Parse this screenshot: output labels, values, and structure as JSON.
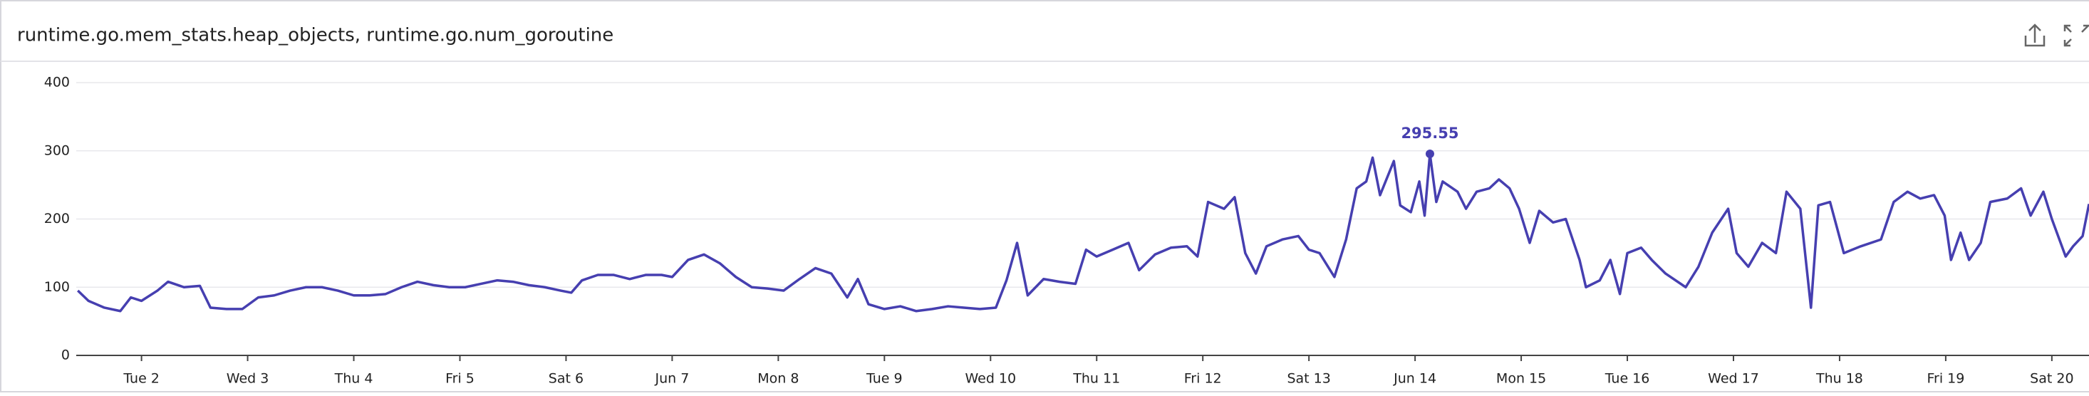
{
  "chart_data": {
    "type": "line",
    "title": "runtime.go.mem_stats.heap_objects, runtime.go.num_goroutine",
    "xlim": [
      1.385,
      20.35
    ],
    "xticks": [
      {
        "value": 2,
        "label": "Tue 2"
      },
      {
        "value": 3,
        "label": "Wed 3"
      },
      {
        "value": 4,
        "label": "Thu 4"
      },
      {
        "value": 5,
        "label": "Fri 5"
      },
      {
        "value": 6,
        "label": "Sat 6"
      },
      {
        "value": 7,
        "label": "Jun 7"
      },
      {
        "value": 8,
        "label": "Mon 8"
      },
      {
        "value": 9,
        "label": "Tue 9"
      },
      {
        "value": 10,
        "label": "Wed 10"
      },
      {
        "value": 11,
        "label": "Thu 11"
      },
      {
        "value": 12,
        "label": "Fri 12"
      },
      {
        "value": 13,
        "label": "Sat 13"
      },
      {
        "value": 14,
        "label": "Jun 14"
      },
      {
        "value": 15,
        "label": "Mon 15"
      },
      {
        "value": 16,
        "label": "Tue 16"
      },
      {
        "value": 17,
        "label": "Wed 17"
      },
      {
        "value": 18,
        "label": "Thu 18"
      },
      {
        "value": 19,
        "label": "Fri 19"
      },
      {
        "value": 20,
        "label": "Sat 20"
      }
    ],
    "ylim": [
      0,
      400
    ],
    "yticks": [
      0,
      100,
      200,
      300,
      400
    ],
    "grid": true,
    "highlight": "max",
    "x": [
      1.4,
      1.5,
      1.65,
      1.8,
      1.9,
      2.0,
      2.15,
      2.25,
      2.4,
      2.55,
      2.65,
      2.8,
      2.95,
      3.1,
      3.25,
      3.4,
      3.55,
      3.7,
      3.85,
      4.0,
      4.15,
      4.3,
      4.45,
      4.6,
      4.75,
      4.9,
      5.05,
      5.2,
      5.35,
      5.5,
      5.65,
      5.8,
      5.95,
      6.05,
      6.15,
      6.3,
      6.45,
      6.6,
      6.75,
      6.9,
      7.0,
      7.15,
      7.3,
      7.45,
      7.6,
      7.75,
      7.9,
      8.05,
      8.2,
      8.35,
      8.5,
      8.65,
      8.75,
      8.85,
      9.0,
      9.15,
      9.3,
      9.45,
      9.6,
      9.75,
      9.9,
      10.05,
      10.15,
      10.25,
      10.35,
      10.5,
      10.65,
      10.8,
      10.9,
      11.0,
      11.15,
      11.3,
      11.4,
      11.55,
      11.7,
      11.85,
      11.95,
      12.05,
      12.2,
      12.3,
      12.4,
      12.5,
      12.6,
      12.75,
      12.9,
      13.0,
      13.1,
      13.24,
      13.35,
      13.45,
      13.54,
      13.6,
      13.67,
      13.8,
      13.86,
      13.96,
      14.04,
      14.09,
      14.14,
      14.2,
      14.26,
      14.4,
      14.48,
      14.58,
      14.7,
      14.79,
      14.89,
      14.98,
      15.08,
      15.17,
      15.3,
      15.42,
      15.55,
      15.61,
      15.74,
      15.84,
      15.93,
      16.0,
      16.13,
      16.23,
      16.36,
      16.55,
      16.67,
      16.8,
      16.95,
      17.03,
      17.14,
      17.27,
      17.4,
      17.5,
      17.63,
      17.73,
      17.8,
      17.91,
      18.04,
      18.2,
      18.39,
      18.51,
      18.64,
      18.76,
      18.89,
      18.99,
      19.05,
      19.14,
      19.22,
      19.33,
      19.42,
      19.58,
      19.71,
      19.8,
      19.92,
      20.0,
      20.13,
      20.2,
      20.29,
      20.35
    ],
    "series": [
      {
        "color": "#463fb0",
        "values": [
          95,
          80,
          70,
          65,
          85,
          80,
          95,
          108,
          100,
          102,
          70,
          68,
          68,
          85,
          88,
          95,
          100,
          100,
          95,
          88,
          88,
          90,
          100,
          108,
          103,
          100,
          100,
          105,
          110,
          108,
          103,
          100,
          95,
          92,
          110,
          118,
          118,
          112,
          118,
          118,
          115,
          140,
          148,
          135,
          115,
          100,
          98,
          95,
          112,
          128,
          120,
          85,
          112,
          75,
          68,
          72,
          65,
          68,
          72,
          70,
          68,
          70,
          110,
          165,
          88,
          112,
          108,
          105,
          155,
          145,
          155,
          165,
          125,
          148,
          158,
          160,
          145,
          225,
          215,
          232,
          150,
          120,
          160,
          170,
          175,
          155,
          150,
          115,
          170,
          245,
          255,
          290,
          235,
          285,
          220,
          210,
          255,
          205,
          295.55,
          225,
          255,
          240,
          215,
          240,
          245,
          258,
          245,
          215,
          165,
          212,
          195,
          200,
          140,
          100,
          110,
          140,
          90,
          150,
          158,
          140,
          120,
          100,
          130,
          180,
          215,
          150,
          130,
          165,
          150,
          240,
          215,
          70,
          220,
          225,
          150,
          160,
          170,
          225,
          240,
          230,
          235,
          205,
          140,
          180,
          140,
          165,
          225,
          230,
          245,
          205,
          240,
          200,
          145,
          160,
          175,
          222
        ]
      }
    ]
  }
}
